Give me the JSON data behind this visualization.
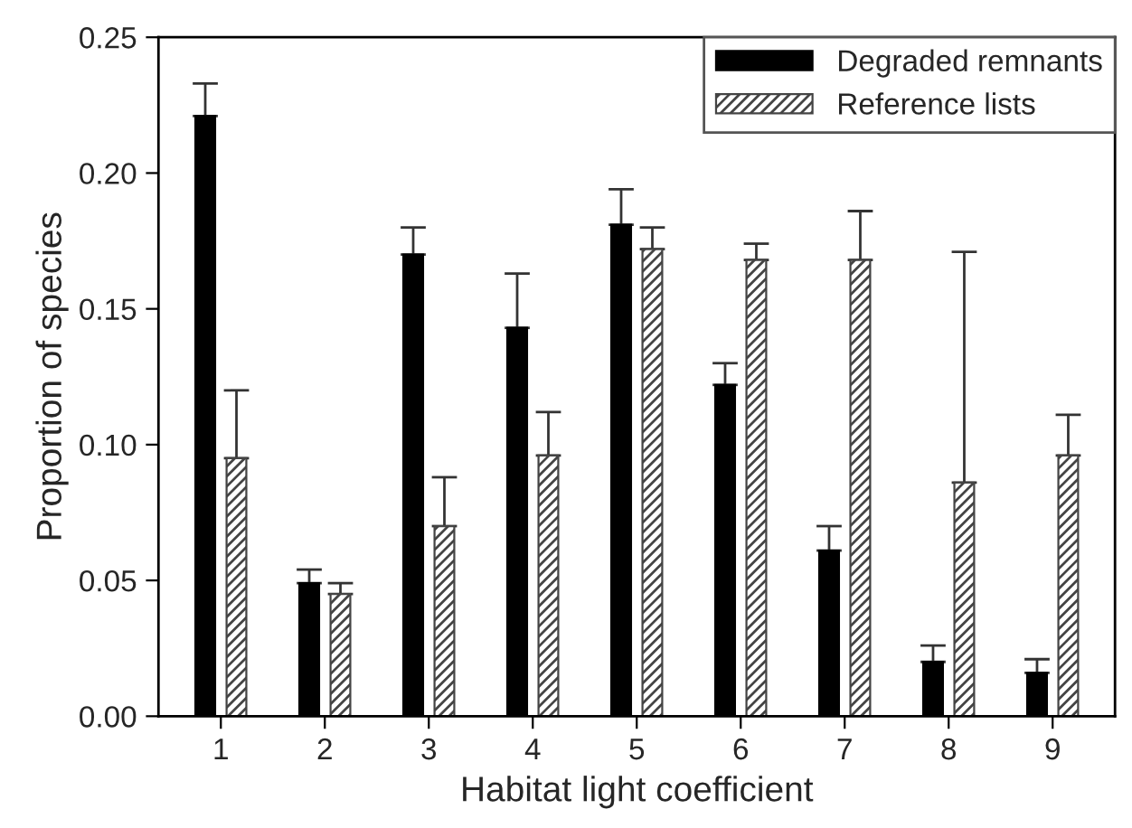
{
  "chart_data": {
    "type": "bar",
    "xlabel": "Habitat light coefficient",
    "ylabel": "Proportion of species",
    "categories": [
      "1",
      "2",
      "3",
      "4",
      "5",
      "6",
      "7",
      "8",
      "9"
    ],
    "series": [
      {
        "name": "Degraded remnants",
        "color": "#000000",
        "values": [
          0.221,
          0.049,
          0.17,
          0.143,
          0.181,
          0.122,
          0.061,
          0.02,
          0.016
        ],
        "errors": [
          [
            0.221,
            0.233
          ],
          [
            0.049,
            0.054
          ],
          [
            0.17,
            0.18
          ],
          [
            0.143,
            0.163
          ],
          [
            0.181,
            0.194
          ],
          [
            0.122,
            0.13
          ],
          [
            0.061,
            0.07
          ],
          [
            0.02,
            0.026
          ],
          [
            0.016,
            0.021
          ]
        ]
      },
      {
        "name": "Reference lists",
        "color": "#444444",
        "values": [
          0.095,
          0.045,
          0.07,
          0.096,
          0.172,
          0.168,
          0.168,
          0.086,
          0.096
        ],
        "errors": [
          [
            0.095,
            0.12
          ],
          [
            0.045,
            0.049
          ],
          [
            0.07,
            0.088
          ],
          [
            0.096,
            0.112
          ],
          [
            0.172,
            0.18
          ],
          [
            0.168,
            0.174
          ],
          [
            0.168,
            0.186
          ],
          [
            0.086,
            0.171
          ],
          [
            0.096,
            0.111
          ]
        ]
      }
    ],
    "ylim": [
      0,
      0.25
    ],
    "yticks": [
      {
        "value": 0,
        "label": "0.00"
      },
      {
        "value": 0.05,
        "label": "0.05"
      },
      {
        "value": 0.1,
        "label": "0.10"
      },
      {
        "value": 0.15,
        "label": "0.15"
      },
      {
        "value": 0.2,
        "label": "0.20"
      },
      {
        "value": 0.25,
        "label": "0.25"
      }
    ],
    "grid": false,
    "legend": "top right"
  }
}
